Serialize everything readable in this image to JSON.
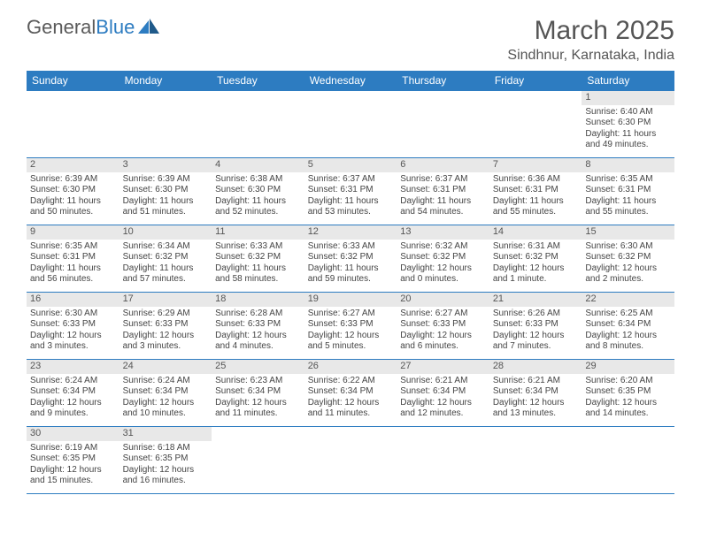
{
  "logo": {
    "text1": "General",
    "text2": "Blue"
  },
  "title": "March 2025",
  "location": "Sindhnur, Karnataka, India",
  "colors": {
    "header_bg": "#2d7cc1",
    "border": "#2d7cc1",
    "daynum_bg": "#e8e8e8",
    "text": "#444"
  },
  "days": [
    "Sunday",
    "Monday",
    "Tuesday",
    "Wednesday",
    "Thursday",
    "Friday",
    "Saturday"
  ],
  "weeks": [
    [
      null,
      null,
      null,
      null,
      null,
      null,
      {
        "n": "1",
        "sr": "6:40 AM",
        "ss": "6:30 PM",
        "dl": "11 hours and 49 minutes."
      }
    ],
    [
      {
        "n": "2",
        "sr": "6:39 AM",
        "ss": "6:30 PM",
        "dl": "11 hours and 50 minutes."
      },
      {
        "n": "3",
        "sr": "6:39 AM",
        "ss": "6:30 PM",
        "dl": "11 hours and 51 minutes."
      },
      {
        "n": "4",
        "sr": "6:38 AM",
        "ss": "6:30 PM",
        "dl": "11 hours and 52 minutes."
      },
      {
        "n": "5",
        "sr": "6:37 AM",
        "ss": "6:31 PM",
        "dl": "11 hours and 53 minutes."
      },
      {
        "n": "6",
        "sr": "6:37 AM",
        "ss": "6:31 PM",
        "dl": "11 hours and 54 minutes."
      },
      {
        "n": "7",
        "sr": "6:36 AM",
        "ss": "6:31 PM",
        "dl": "11 hours and 55 minutes."
      },
      {
        "n": "8",
        "sr": "6:35 AM",
        "ss": "6:31 PM",
        "dl": "11 hours and 55 minutes."
      }
    ],
    [
      {
        "n": "9",
        "sr": "6:35 AM",
        "ss": "6:31 PM",
        "dl": "11 hours and 56 minutes."
      },
      {
        "n": "10",
        "sr": "6:34 AM",
        "ss": "6:32 PM",
        "dl": "11 hours and 57 minutes."
      },
      {
        "n": "11",
        "sr": "6:33 AM",
        "ss": "6:32 PM",
        "dl": "11 hours and 58 minutes."
      },
      {
        "n": "12",
        "sr": "6:33 AM",
        "ss": "6:32 PM",
        "dl": "11 hours and 59 minutes."
      },
      {
        "n": "13",
        "sr": "6:32 AM",
        "ss": "6:32 PM",
        "dl": "12 hours and 0 minutes."
      },
      {
        "n": "14",
        "sr": "6:31 AM",
        "ss": "6:32 PM",
        "dl": "12 hours and 1 minute."
      },
      {
        "n": "15",
        "sr": "6:30 AM",
        "ss": "6:32 PM",
        "dl": "12 hours and 2 minutes."
      }
    ],
    [
      {
        "n": "16",
        "sr": "6:30 AM",
        "ss": "6:33 PM",
        "dl": "12 hours and 3 minutes."
      },
      {
        "n": "17",
        "sr": "6:29 AM",
        "ss": "6:33 PM",
        "dl": "12 hours and 3 minutes."
      },
      {
        "n": "18",
        "sr": "6:28 AM",
        "ss": "6:33 PM",
        "dl": "12 hours and 4 minutes."
      },
      {
        "n": "19",
        "sr": "6:27 AM",
        "ss": "6:33 PM",
        "dl": "12 hours and 5 minutes."
      },
      {
        "n": "20",
        "sr": "6:27 AM",
        "ss": "6:33 PM",
        "dl": "12 hours and 6 minutes."
      },
      {
        "n": "21",
        "sr": "6:26 AM",
        "ss": "6:33 PM",
        "dl": "12 hours and 7 minutes."
      },
      {
        "n": "22",
        "sr": "6:25 AM",
        "ss": "6:34 PM",
        "dl": "12 hours and 8 minutes."
      }
    ],
    [
      {
        "n": "23",
        "sr": "6:24 AM",
        "ss": "6:34 PM",
        "dl": "12 hours and 9 minutes."
      },
      {
        "n": "24",
        "sr": "6:24 AM",
        "ss": "6:34 PM",
        "dl": "12 hours and 10 minutes."
      },
      {
        "n": "25",
        "sr": "6:23 AM",
        "ss": "6:34 PM",
        "dl": "12 hours and 11 minutes."
      },
      {
        "n": "26",
        "sr": "6:22 AM",
        "ss": "6:34 PM",
        "dl": "12 hours and 11 minutes."
      },
      {
        "n": "27",
        "sr": "6:21 AM",
        "ss": "6:34 PM",
        "dl": "12 hours and 12 minutes."
      },
      {
        "n": "28",
        "sr": "6:21 AM",
        "ss": "6:34 PM",
        "dl": "12 hours and 13 minutes."
      },
      {
        "n": "29",
        "sr": "6:20 AM",
        "ss": "6:35 PM",
        "dl": "12 hours and 14 minutes."
      }
    ],
    [
      {
        "n": "30",
        "sr": "6:19 AM",
        "ss": "6:35 PM",
        "dl": "12 hours and 15 minutes."
      },
      {
        "n": "31",
        "sr": "6:18 AM",
        "ss": "6:35 PM",
        "dl": "12 hours and 16 minutes."
      },
      null,
      null,
      null,
      null,
      null
    ]
  ],
  "labels": {
    "sunrise": "Sunrise:",
    "sunset": "Sunset:",
    "daylight": "Daylight:"
  }
}
